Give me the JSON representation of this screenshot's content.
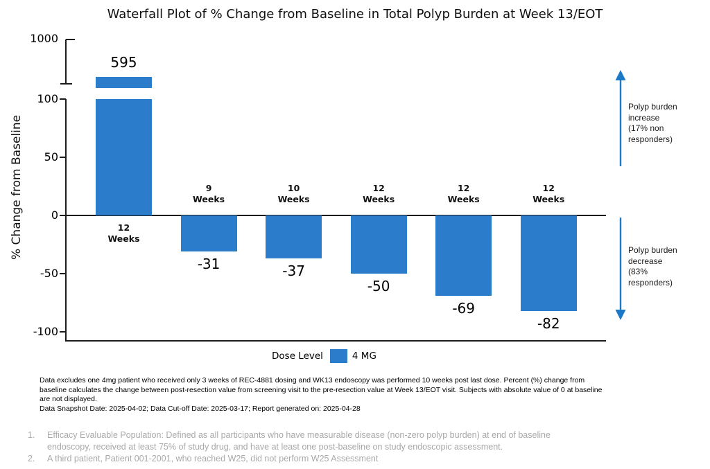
{
  "title": "Waterfall Plot of % Change from Baseline in Total Polyp Burden at Week 13/EOT",
  "y_axis": {
    "label": "% Change from Baseline",
    "break_tick": "1000",
    "ticks": [
      "100",
      "50",
      "0",
      "-50",
      "-100"
    ]
  },
  "chart_data": {
    "type": "bar",
    "title": "Waterfall Plot of % Change from Baseline in Total Polyp Burden at Week 13/EOT",
    "ylabel": "% Change from Baseline",
    "categories": [
      "12 Weeks",
      "9 Weeks",
      "10 Weeks",
      "12 Weeks",
      "12 Weeks",
      "12 Weeks"
    ],
    "values": [
      595,
      -31,
      -37,
      -50,
      -69,
      -82
    ],
    "series": [
      {
        "name": "4 MG",
        "values": [
          595,
          -31,
          -37,
          -50,
          -69,
          -82
        ]
      }
    ],
    "ylim_main": [
      -100,
      100
    ],
    "axis_break_upper_tick": 1000,
    "grid": false,
    "legend_position": "bottom",
    "bar_color": "#2B7CCB"
  },
  "legend": {
    "label": "Dose Level",
    "item": "4 MG"
  },
  "annotations": {
    "increase_text": "Polyp burden\nincrease\n(17% non\nresponders)",
    "decrease_text": "Polyp burden\ndecrease\n(83%\nresponders)",
    "arrow_color": "#1C79C8"
  },
  "footnotes": [
    "Data excludes one 4mg patient who received only 3 weeks of REC-4881 dosing and WK13 endoscopy was performed 10 weeks post last dose. Percent (%) change from",
    "baseline calculates the change between post-resection value from screening visit to the pre-resection value at Week 13/EOT visit. Subjects with absolute value of 0 at baseline",
    "are not displayed.",
    "Data Snapshot Date: 2025-04-02; Data Cut-off Date: 2025-03-17; Report generated on: 2025-04-28"
  ],
  "notes": [
    {
      "num": "1.",
      "text": "Efficacy Evaluable Population: Defined as all participants who have measurable disease (non-zero polyp burden) at end of baseline endoscopy, received at least 75% of study drug, and have at least one post-baseline on study endoscopic assessment."
    },
    {
      "num": "2.",
      "text": "A third patient, Patient 001-2001, who reached W25, did not perform W25 Assessment"
    }
  ],
  "colors": {
    "bar": "#2B7CCB",
    "arrow": "#1C79C8",
    "muted_text": "#a9a9a9"
  }
}
